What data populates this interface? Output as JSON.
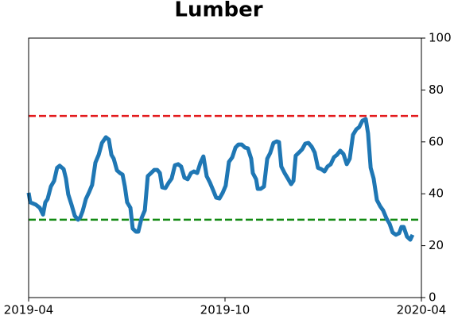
{
  "chart_data": {
    "type": "line",
    "title": "Lumber",
    "x": [
      0,
      0.05,
      0.22,
      0.34,
      0.44,
      0.51,
      0.58,
      0.68,
      0.78,
      0.87,
      0.95,
      1.07,
      1.14,
      1.21,
      1.31,
      1.41,
      1.51,
      1.58,
      1.65,
      1.75,
      1.85,
      1.94,
      2.04,
      2.14,
      2.24,
      2.36,
      2.45,
      2.53,
      2.6,
      2.7,
      2.79,
      2.87,
      2.94,
      3.01,
      3.11,
      3.18,
      3.28,
      3.35,
      3.45,
      3.55,
      3.64,
      3.74,
      3.84,
      3.93,
      4.01,
      4.08,
      4.18,
      4.28,
      4.37,
      4.47,
      4.57,
      4.66,
      4.76,
      4.86,
      4.96,
      5.05,
      5.15,
      5.25,
      5.34,
      5.44,
      5.54,
      5.64,
      5.73,
      5.83,
      5.93,
      6.02,
      6.12,
      6.22,
      6.32,
      6.41,
      6.51,
      6.61,
      6.7,
      6.8,
      6.85,
      6.95,
      7.0,
      7.09,
      7.19,
      7.29,
      7.38,
      7.48,
      7.58,
      7.65,
      7.72,
      7.82,
      7.92,
      8.02,
      8.09,
      8.16,
      8.26,
      8.36,
      8.45,
      8.55,
      8.65,
      8.74,
      8.84,
      8.94,
      9.04,
      9.13,
      9.23,
      9.33,
      9.42,
      9.52,
      9.62,
      9.72,
      9.81,
      9.91,
      10.01,
      10.1,
      10.2,
      10.3,
      10.37,
      10.45,
      10.54,
      10.64,
      10.74,
      10.83,
      10.93,
      11.03,
      11.12,
      11.22,
      11.32,
      11.39,
      11.46,
      11.56,
      11.66,
      11.73
    ],
    "series": [
      {
        "color": "#1f77b4",
        "values": [
          40.4,
          36.7,
          35.8,
          34.6,
          32,
          36.7,
          38,
          42.8,
          45,
          50,
          50.8,
          49.5,
          45.9,
          39.8,
          35.8,
          31.5,
          30,
          31,
          33.3,
          38,
          40.7,
          43.4,
          52,
          55,
          59.6,
          61.8,
          60.9,
          55,
          53.5,
          49,
          48,
          47.4,
          42.8,
          36.7,
          34.6,
          26.6,
          25.4,
          25.4,
          30.6,
          33.6,
          46.8,
          48,
          49.2,
          49.2,
          48,
          42.5,
          42.2,
          44.3,
          45.9,
          51,
          51.4,
          50.5,
          46.2,
          45.6,
          48,
          48.6,
          48,
          52,
          54.4,
          46.8,
          44.3,
          41.3,
          38.5,
          38.2,
          40.4,
          43.1,
          52.3,
          54,
          57.8,
          59,
          59,
          57.8,
          57.5,
          53.5,
          48,
          45.6,
          41.9,
          41.9,
          42.8,
          53.5,
          55.7,
          59.6,
          60.2,
          59.9,
          50.5,
          48,
          45.9,
          43.7,
          45,
          54.7,
          55.9,
          57.2,
          59.3,
          59.6,
          58.1,
          55.9,
          50,
          49.5,
          48.6,
          50.5,
          51.4,
          54.1,
          55,
          56.6,
          55.3,
          51.4,
          53.5,
          62.7,
          64.8,
          65.7,
          68.2,
          68.8,
          63.3,
          50,
          45.9,
          37.6,
          35.2,
          33.6,
          30.6,
          28.4,
          25.1,
          24.2,
          24.8,
          27.2,
          27.2,
          23.5,
          22.3,
          24.2
        ]
      }
    ],
    "xlim": [
      0,
      12
    ],
    "xticks": [
      {
        "value": 0,
        "label": "2019-04"
      },
      {
        "value": 6,
        "label": "2019-10"
      },
      {
        "value": 12,
        "label": "2020-04"
      }
    ],
    "ylim": [
      0,
      100
    ],
    "yticks": [
      0,
      20,
      40,
      60,
      80,
      100
    ],
    "hlines": [
      {
        "value": 70,
        "color": "#e31a1c"
      },
      {
        "value": 30,
        "color": "#138a13"
      }
    ]
  }
}
